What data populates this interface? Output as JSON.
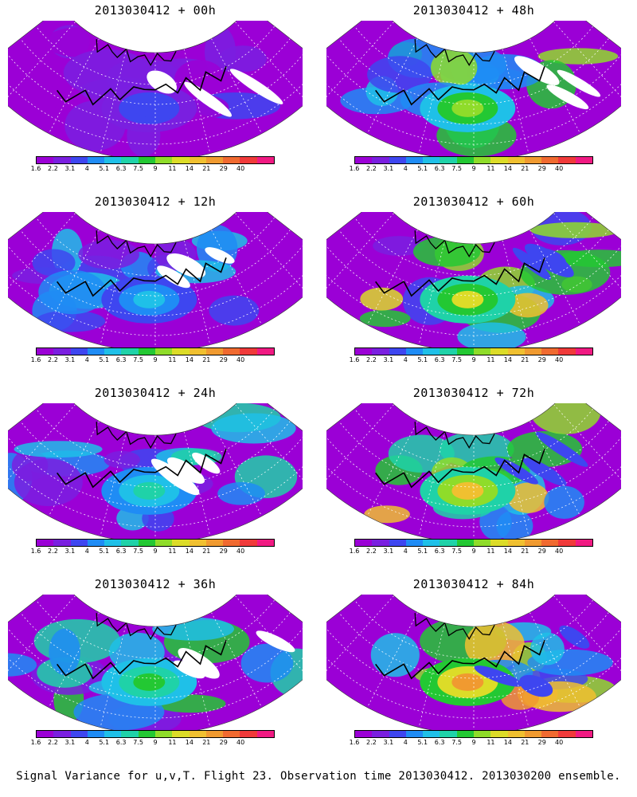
{
  "panels": [
    {
      "title": "2013030412 + 00h",
      "intensity": 0.15
    },
    {
      "title": "2013030412 + 48h",
      "intensity": 0.55
    },
    {
      "title": "2013030412 + 12h",
      "intensity": 0.3
    },
    {
      "title": "2013030412 + 60h",
      "intensity": 0.62
    },
    {
      "title": "2013030412 + 24h",
      "intensity": 0.38
    },
    {
      "title": "2013030412 + 72h",
      "intensity": 0.7
    },
    {
      "title": "2013030412 + 36h",
      "intensity": 0.45
    },
    {
      "title": "2013030412 + 84h",
      "intensity": 0.75
    }
  ],
  "colorbar": {
    "labels": [
      "1.6",
      "2.2",
      "3.1",
      "4",
      "5.1",
      "6.3",
      "7.5",
      "9",
      "11",
      "14",
      "21",
      "29",
      "40"
    ],
    "colors": [
      "#9b00d6",
      "#7a1fe0",
      "#3e46f0",
      "#1f8cf5",
      "#1fc0e8",
      "#1fd2a8",
      "#23c833",
      "#8fdc2a",
      "#dcdc28",
      "#f0c030",
      "#f09a30",
      "#f06a30",
      "#f03a3a",
      "#f01a82"
    ]
  },
  "caption": "Signal Variance for u,v,T. Flight 23. Observation time 2013030412. 2013030200 ensemble."
}
